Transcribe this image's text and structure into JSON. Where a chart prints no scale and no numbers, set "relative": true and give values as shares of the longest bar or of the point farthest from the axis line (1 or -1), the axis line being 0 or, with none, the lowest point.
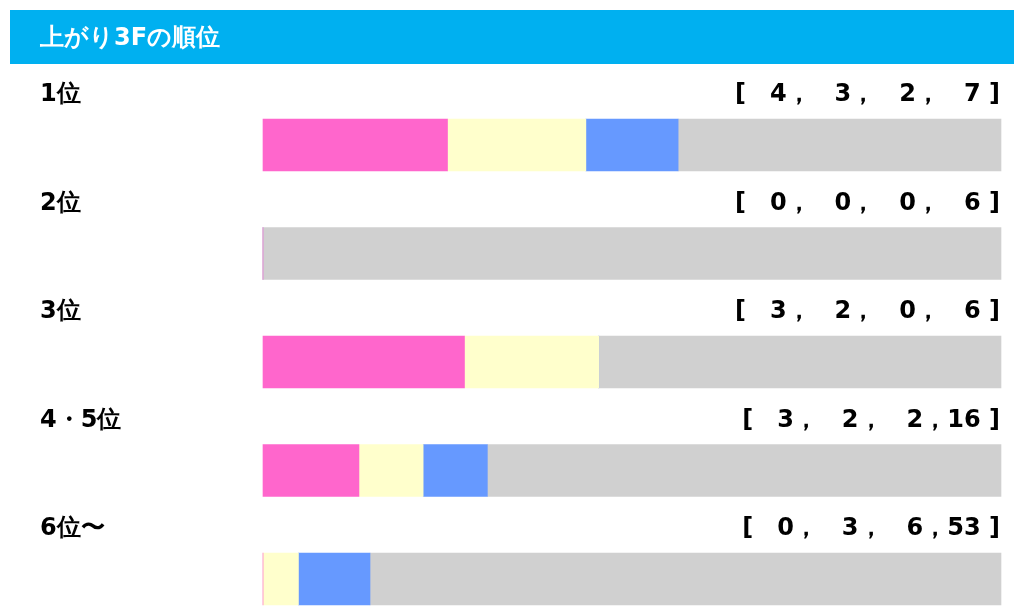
{
  "chart_data": {
    "type": "bar",
    "title": "上がり3Fの順位",
    "orientation": "horizontal",
    "stacked": true,
    "relative": true,
    "legend": false,
    "categories": [
      "1位",
      "2位",
      "3位",
      "4・5位",
      "6位〜"
    ],
    "series": [
      {
        "color": "#ff66cc",
        "values": [
          0.25,
          0,
          0.273,
          0.13,
          0
        ]
      },
      {
        "color": "#ffffcc",
        "values": [
          0.1875,
          0,
          0.182,
          0.087,
          0.048
        ]
      },
      {
        "color": "#6699ff",
        "values": [
          0.125,
          0,
          0,
          0.087,
          0.097
        ]
      },
      {
        "color": "#d0d0d0",
        "values": [
          0.4375,
          1,
          0.545,
          0.696,
          0.855
        ]
      }
    ],
    "annotations": [
      "[　4，　3，　2，　7 ]",
      "[　0，　0，　0，　6 ]",
      "[　3，　2，　0，　6 ]",
      "[　3，　2，　2，16 ]",
      "[　0，　3，　6，53 ]"
    ]
  }
}
